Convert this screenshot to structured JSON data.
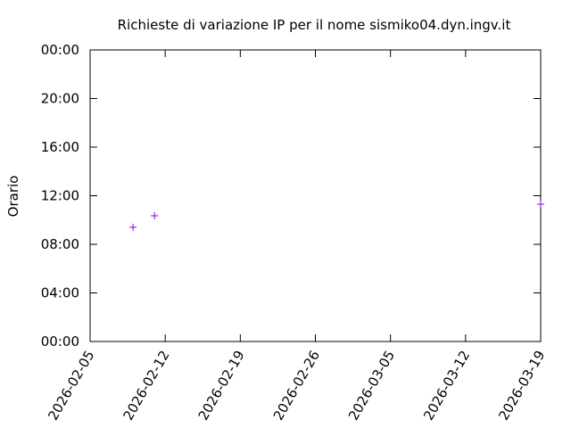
{
  "chart_data": {
    "type": "scatter",
    "title": "Richieste di variazione IP per il nome sismiko04.dyn.ingv.it",
    "y_label": "Orario",
    "x": [
      "2026-02-09",
      "2026-02-11",
      "2026-03-19"
    ],
    "series": [
      {
        "color": "#9400d3",
        "values": [
          9.4,
          10.35,
          11.3
        ]
      }
    ],
    "xlim": [
      "2026-02-05",
      "2026-03-19"
    ],
    "xticks": [
      "2026-02-05",
      "2026-02-12",
      "2026-02-19",
      "2026-02-26",
      "2026-03-05",
      "2026-03-12",
      "2026-03-19"
    ],
    "ylim": [
      0,
      24
    ],
    "yticks": [
      {
        "value": 0,
        "label": "00:00"
      },
      {
        "value": 4,
        "label": "04:00"
      },
      {
        "value": 8,
        "label": "08:00"
      },
      {
        "value": 12,
        "label": "12:00"
      },
      {
        "value": 16,
        "label": "16:00"
      },
      {
        "value": 20,
        "label": "20:00"
      },
      {
        "value": 24,
        "label": "00:00"
      }
    ],
    "grid": false
  }
}
